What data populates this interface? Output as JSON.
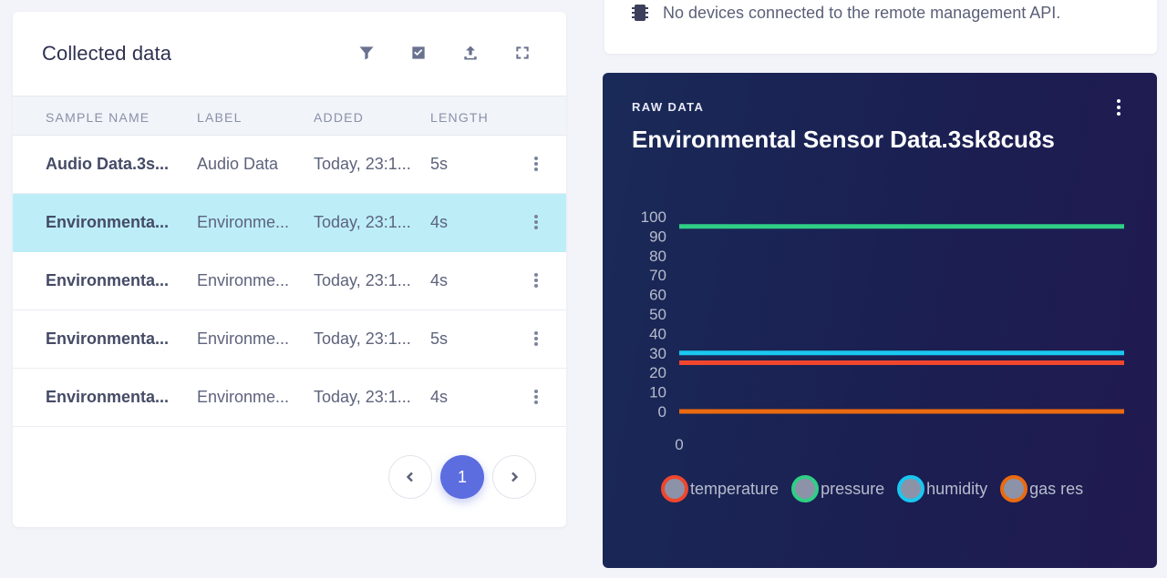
{
  "collected": {
    "title": "Collected data",
    "toolbar": [
      "filter-icon",
      "select-icon",
      "upload-icon",
      "expand-icon"
    ],
    "columns": {
      "name": "SAMPLE NAME",
      "label": "LABEL",
      "added": "ADDED",
      "length": "LENGTH"
    },
    "rows": [
      {
        "name": "Audio Data.3s...",
        "label": "Audio Data",
        "added": "Today, 23:1...",
        "length": "5s",
        "selected": false
      },
      {
        "name": "Environmenta...",
        "label": "Environme...",
        "added": "Today, 23:1...",
        "length": "4s",
        "selected": true
      },
      {
        "name": "Environmenta...",
        "label": "Environme...",
        "added": "Today, 23:1...",
        "length": "4s",
        "selected": false
      },
      {
        "name": "Environmenta...",
        "label": "Environme...",
        "added": "Today, 23:1...",
        "length": "5s",
        "selected": false
      },
      {
        "name": "Environmenta...",
        "label": "Environme...",
        "added": "Today, 23:1...",
        "length": "4s",
        "selected": false
      }
    ],
    "pager": {
      "current": "1"
    }
  },
  "devices": {
    "message": "No devices connected to the remote management API."
  },
  "raw": {
    "subtitle": "RAW DATA",
    "title": "Environmental Sensor Data.3sk8cu8s"
  },
  "chart_data": {
    "type": "line",
    "title": "Environmental Sensor Data.3sk8cu8s",
    "x": [
      0,
      1
    ],
    "x_tick_labels": [
      "0"
    ],
    "ylim": [
      0,
      100
    ],
    "y_ticks": [
      0,
      10,
      20,
      30,
      40,
      50,
      60,
      70,
      80,
      90,
      100
    ],
    "grid": false,
    "legend_position": "bottom",
    "series": [
      {
        "name": "temperature",
        "color": "#f0462e",
        "values": [
          25,
          25
        ]
      },
      {
        "name": "pressure",
        "color": "#2fcf86",
        "values": [
          95,
          95
        ]
      },
      {
        "name": "humidity",
        "color": "#19c7f0",
        "values": [
          30,
          30
        ]
      },
      {
        "name": "gas res",
        "color": "#ea6a10",
        "values": [
          0,
          0
        ]
      }
    ]
  }
}
